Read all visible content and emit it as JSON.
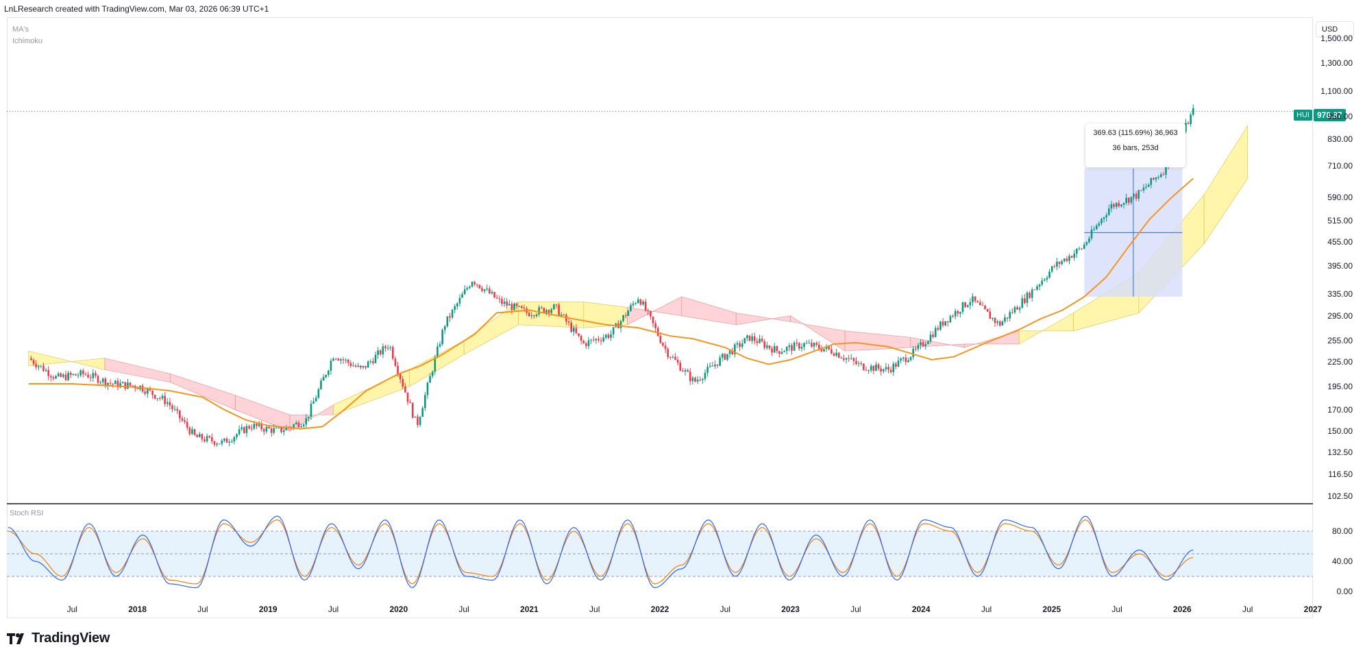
{
  "header": {
    "attribution": "LnLResearch created with TradingView.com, Mar 03, 2026 06:39 UTC+1"
  },
  "indicators": [
    "MA's",
    "Ichimoku"
  ],
  "currency_button": "USD",
  "symbol": "HUI",
  "last_price": "978.87",
  "measure": {
    "line1": "369.63 (115.69%) 36,963",
    "line2": "36 bars, 253d"
  },
  "stoch_title": "Stoch RSI",
  "brand": "TradingView",
  "colors": {
    "up": "#089981",
    "down": "#f23645",
    "ma": "#f7931a",
    "stoch_k": "#2962ff",
    "stoch_d": "#f57c00",
    "cloud_bull": "#fff59d",
    "cloud_bear": "#ffcdd2",
    "measure_fill": "#d6ddfb",
    "stoch_band": "#e3f2fd"
  },
  "chart_data": [
    {
      "type": "line",
      "title": "HUI",
      "scale": "log",
      "y_ticks": [
        "1,500.00",
        "1,300.00",
        "1,100.00",
        "950.00",
        "830.00",
        "710.00",
        "590.00",
        "515.00",
        "455.00",
        "395.00",
        "335.00",
        "295.00",
        "255.00",
        "225.00",
        "195.00",
        "170.00",
        "150.00",
        "132.50",
        "116.50",
        "102.50"
      ],
      "x_ticks": [
        "Jul",
        "2018",
        "Jul",
        "2019",
        "Jul",
        "2020",
        "Jul",
        "2021",
        "Jul",
        "2022",
        "Jul",
        "2023",
        "Jul",
        "2024",
        "Jul",
        "2025",
        "Jul",
        "2026",
        "Jul",
        "2027"
      ],
      "x": [
        "2017-03",
        "2017-07",
        "2017-10",
        "2018-01",
        "2018-04",
        "2018-07",
        "2018-09",
        "2018-11",
        "2019-01",
        "2019-04",
        "2019-06",
        "2019-08",
        "2019-10",
        "2020-01",
        "2020-03",
        "2020-05",
        "2020-08",
        "2020-10",
        "2021-01",
        "2021-05",
        "2021-08",
        "2021-11",
        "2022-02",
        "2022-04",
        "2022-07",
        "2022-09",
        "2022-11",
        "2023-01",
        "2023-05",
        "2023-07",
        "2023-10",
        "2024-02",
        "2024-04",
        "2024-07",
        "2024-10",
        "2024-12",
        "2025-02",
        "2025-04",
        "2025-06",
        "2025-08",
        "2025-10",
        "2025-12",
        "2026-02"
      ],
      "series": [
        {
          "name": "Close",
          "values": [
            230,
            205,
            210,
            198,
            195,
            178,
            145,
            140,
            155,
            150,
            160,
            235,
            215,
            250,
            155,
            280,
            365,
            320,
            300,
            310,
            250,
            265,
            330,
            240,
            200,
            230,
            260,
            240,
            250,
            240,
            220,
            215,
            240,
            285,
            325,
            280,
            330,
            395,
            440,
            560,
            600,
            700,
            978.87
          ]
        },
        {
          "name": "MA",
          "values": [
            198,
            198,
            196,
            194,
            190,
            183,
            170,
            160,
            155,
            152,
            154,
            170,
            190,
            210,
            220,
            235,
            265,
            300,
            305,
            290,
            280,
            275,
            262,
            258,
            245,
            230,
            222,
            228,
            250,
            252,
            246,
            228,
            232,
            252,
            272,
            290,
            305,
            330,
            370,
            440,
            520,
            590,
            660
          ]
        }
      ],
      "cloud": [
        {
          "date": "2017-03",
          "span_a": 240,
          "span_b": 220
        },
        {
          "date": "2017-10",
          "span_a": 215,
          "span_b": 230
        },
        {
          "date": "2018-04",
          "span_a": 200,
          "span_b": 210
        },
        {
          "date": "2018-10",
          "span_a": 170,
          "span_b": 185
        },
        {
          "date": "2019-03",
          "span_a": 150,
          "span_b": 165
        },
        {
          "date": "2019-07",
          "span_a": 175,
          "span_b": 165
        },
        {
          "date": "2020-02",
          "span_a": 215,
          "span_b": 195
        },
        {
          "date": "2020-07",
          "span_a": 255,
          "span_b": 235
        },
        {
          "date": "2020-12",
          "span_a": 320,
          "span_b": 280
        },
        {
          "date": "2021-06",
          "span_a": 320,
          "span_b": 275
        },
        {
          "date": "2021-10",
          "span_a": 310,
          "span_b": 280
        },
        {
          "date": "2022-03",
          "span_a": 295,
          "span_b": 330
        },
        {
          "date": "2022-08",
          "span_a": 280,
          "span_b": 300
        },
        {
          "date": "2023-01",
          "span_a": 295,
          "span_b": 285
        },
        {
          "date": "2023-06",
          "span_a": 240,
          "span_b": 270
        },
        {
          "date": "2023-12",
          "span_a": 245,
          "span_b": 260
        },
        {
          "date": "2024-05",
          "span_a": 250,
          "span_b": 245
        },
        {
          "date": "2024-10",
          "span_a": 250,
          "span_b": 270
        },
        {
          "date": "2025-03",
          "span_a": 300,
          "span_b": 270
        },
        {
          "date": "2025-09",
          "span_a": 380,
          "span_b": 300
        },
        {
          "date": "2026-03",
          "span_a": 600,
          "span_b": 450
        },
        {
          "date": "2026-07",
          "span_a": 900,
          "span_b": 660
        }
      ],
      "measure_range": {
        "from": "2025-04",
        "to": "2026-01",
        "low": 330,
        "high": 700
      }
    },
    {
      "type": "line",
      "title": "Stoch RSI",
      "y_ticks": [
        "80.00",
        "40.00",
        "0.00"
      ],
      "band": [
        20,
        80
      ],
      "midline": 50,
      "series": [
        {
          "name": "K",
          "values": [
            85,
            40,
            15,
            90,
            20,
            75,
            10,
            5,
            95,
            60,
            100,
            15,
            90,
            30,
            95,
            5,
            95,
            20,
            15,
            95,
            10,
            85,
            15,
            95,
            5,
            30,
            95,
            20,
            90,
            15,
            75,
            20,
            95,
            15,
            95,
            85,
            20,
            95,
            85,
            30,
            100,
            20,
            55,
            15,
            55
          ]
        },
        {
          "name": "D",
          "values": [
            80,
            50,
            20,
            85,
            25,
            70,
            15,
            10,
            90,
            65,
            95,
            20,
            85,
            35,
            90,
            10,
            90,
            25,
            20,
            90,
            15,
            80,
            20,
            90,
            10,
            35,
            90,
            25,
            85,
            20,
            70,
            25,
            90,
            20,
            90,
            80,
            25,
            90,
            80,
            35,
            95,
            25,
            50,
            20,
            45
          ]
        }
      ]
    }
  ]
}
